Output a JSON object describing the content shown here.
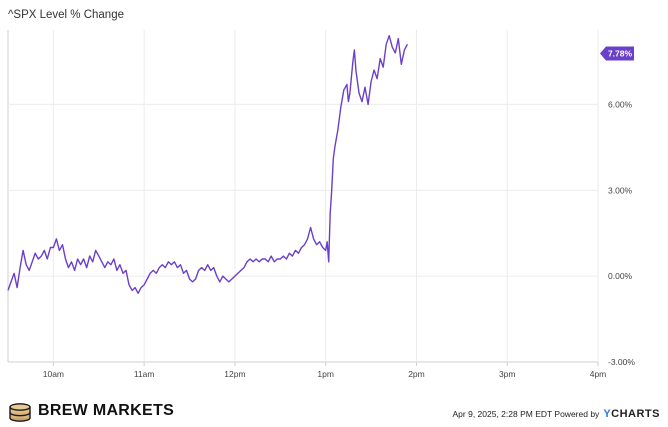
{
  "chart_data": {
    "type": "line",
    "title": "^SPX Level % Change",
    "x_ticks": [
      "10am",
      "11am",
      "12pm",
      "1pm",
      "2pm",
      "3pm",
      "4pm"
    ],
    "y_ticks": [
      "-3.00%",
      "0.00%",
      "3.00%",
      "6.00%"
    ],
    "ylim": [
      -3.0,
      8.6
    ],
    "grid": true,
    "last_value_label": "7.78%",
    "series": [
      {
        "color": "#6a3fc9",
        "points": [
          [
            "9:30",
            -0.5
          ],
          [
            "9:32",
            -0.2
          ],
          [
            "9:34",
            0.1
          ],
          [
            "9:36",
            -0.4
          ],
          [
            "9:38",
            0.3
          ],
          [
            "9:40",
            0.9
          ],
          [
            "9:42",
            0.4
          ],
          [
            "9:44",
            0.2
          ],
          [
            "9:46",
            0.5
          ],
          [
            "9:48",
            0.8
          ],
          [
            "9:50",
            0.6
          ],
          [
            "9:52",
            0.7
          ],
          [
            "9:54",
            0.9
          ],
          [
            "9:56",
            0.6
          ],
          [
            "9:58",
            1.0
          ],
          [
            "10:00",
            1.0
          ],
          [
            "10:02",
            1.3
          ],
          [
            "10:04",
            0.9
          ],
          [
            "10:06",
            1.1
          ],
          [
            "10:08",
            0.6
          ],
          [
            "10:10",
            0.3
          ],
          [
            "10:12",
            0.5
          ],
          [
            "10:14",
            0.2
          ],
          [
            "10:16",
            0.6
          ],
          [
            "10:18",
            0.4
          ],
          [
            "10:20",
            0.6
          ],
          [
            "10:22",
            0.3
          ],
          [
            "10:24",
            0.7
          ],
          [
            "10:26",
            0.5
          ],
          [
            "10:28",
            0.9
          ],
          [
            "10:30",
            0.7
          ],
          [
            "10:32",
            0.5
          ],
          [
            "10:34",
            0.3
          ],
          [
            "10:36",
            0.5
          ],
          [
            "10:38",
            0.4
          ],
          [
            "10:40",
            0.6
          ],
          [
            "10:42",
            0.2
          ],
          [
            "10:44",
            0.4
          ],
          [
            "10:46",
            0.1
          ],
          [
            "10:48",
            0.2
          ],
          [
            "10:50",
            -0.3
          ],
          [
            "10:52",
            -0.5
          ],
          [
            "10:54",
            -0.4
          ],
          [
            "10:56",
            -0.6
          ],
          [
            "10:58",
            -0.4
          ],
          [
            "11:00",
            -0.3
          ],
          [
            "11:02",
            -0.1
          ],
          [
            "11:04",
            0.1
          ],
          [
            "11:06",
            0.2
          ],
          [
            "11:08",
            0.1
          ],
          [
            "11:10",
            0.3
          ],
          [
            "11:12",
            0.4
          ],
          [
            "11:14",
            0.3
          ],
          [
            "11:16",
            0.5
          ],
          [
            "11:18",
            0.4
          ],
          [
            "11:20",
            0.5
          ],
          [
            "11:22",
            0.3
          ],
          [
            "11:24",
            0.4
          ],
          [
            "11:26",
            0.1
          ],
          [
            "11:28",
            0.2
          ],
          [
            "11:30",
            -0.1
          ],
          [
            "11:32",
            -0.2
          ],
          [
            "11:34",
            -0.1
          ],
          [
            "11:36",
            0.2
          ],
          [
            "11:38",
            0.3
          ],
          [
            "11:40",
            0.2
          ],
          [
            "11:42",
            0.4
          ],
          [
            "11:44",
            0.2
          ],
          [
            "11:46",
            0.3
          ],
          [
            "11:48",
            0.0
          ],
          [
            "11:50",
            -0.2
          ],
          [
            "11:52",
            0.0
          ],
          [
            "11:54",
            -0.1
          ],
          [
            "11:56",
            -0.2
          ],
          [
            "11:58",
            -0.1
          ],
          [
            "12:00",
            0.0
          ],
          [
            "12:02",
            0.1
          ],
          [
            "12:04",
            0.2
          ],
          [
            "12:06",
            0.3
          ],
          [
            "12:08",
            0.5
          ],
          [
            "12:10",
            0.6
          ],
          [
            "12:12",
            0.5
          ],
          [
            "12:14",
            0.6
          ],
          [
            "12:16",
            0.5
          ],
          [
            "12:18",
            0.6
          ],
          [
            "12:20",
            0.6
          ],
          [
            "12:22",
            0.5
          ],
          [
            "12:24",
            0.7
          ],
          [
            "12:26",
            0.5
          ],
          [
            "12:28",
            0.6
          ],
          [
            "12:30",
            0.6
          ],
          [
            "12:32",
            0.7
          ],
          [
            "12:34",
            0.6
          ],
          [
            "12:36",
            0.8
          ],
          [
            "12:38",
            0.7
          ],
          [
            "12:40",
            0.9
          ],
          [
            "12:42",
            0.8
          ],
          [
            "12:44",
            1.0
          ],
          [
            "12:46",
            1.1
          ],
          [
            "12:48",
            1.3
          ],
          [
            "12:50",
            1.7
          ],
          [
            "12:52",
            1.3
          ],
          [
            "12:54",
            1.1
          ],
          [
            "12:56",
            1.2
          ],
          [
            "12:58",
            1.0
          ],
          [
            "13:00",
            0.9
          ],
          [
            "13:01",
            1.2
          ],
          [
            "13:02",
            0.5
          ],
          [
            "13:03",
            2.2
          ],
          [
            "13:04",
            3.0
          ],
          [
            "13:05",
            4.1
          ],
          [
            "13:06",
            4.5
          ],
          [
            "13:08",
            5.1
          ],
          [
            "13:10",
            5.9
          ],
          [
            "13:12",
            6.5
          ],
          [
            "13:14",
            6.7
          ],
          [
            "13:15",
            6.1
          ],
          [
            "13:16",
            6.4
          ],
          [
            "13:18",
            7.5
          ],
          [
            "13:19",
            7.9
          ],
          [
            "13:20",
            7.2
          ],
          [
            "13:22",
            6.4
          ],
          [
            "13:24",
            6.1
          ],
          [
            "13:26",
            6.6
          ],
          [
            "13:28",
            6.0
          ],
          [
            "13:30",
            6.8
          ],
          [
            "13:32",
            7.2
          ],
          [
            "13:34",
            6.9
          ],
          [
            "13:36",
            7.6
          ],
          [
            "13:38",
            7.3
          ],
          [
            "13:40",
            8.1
          ],
          [
            "13:42",
            8.4
          ],
          [
            "13:44",
            8.0
          ],
          [
            "13:46",
            7.8
          ],
          [
            "13:48",
            8.3
          ],
          [
            "13:50",
            7.4
          ],
          [
            "13:52",
            7.9
          ],
          [
            "13:54",
            8.1
          ]
        ]
      }
    ]
  },
  "footer": {
    "brand_icon": "coin-stack-icon",
    "brand_name": "BREW MARKETS",
    "credit_text": "Apr 9, 2025, 2:28 PM EDT Powered by",
    "credit_logo_y": "Y",
    "credit_logo_rest": "CHARTS"
  }
}
